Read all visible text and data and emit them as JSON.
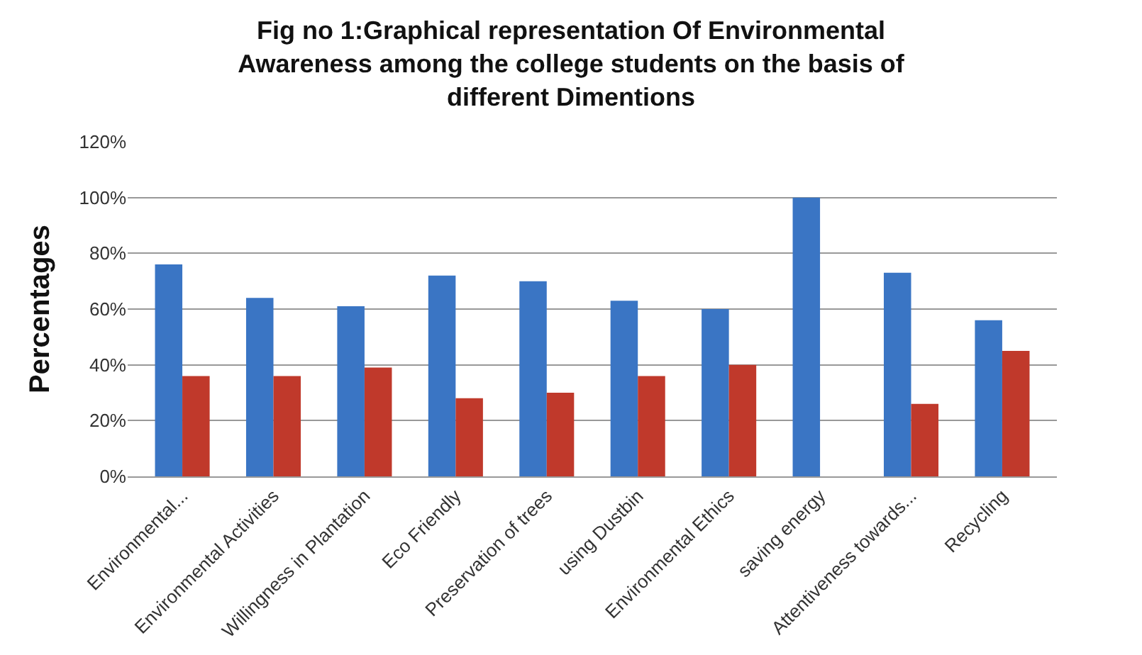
{
  "chart_data": {
    "type": "bar",
    "title": "Fig no 1:Graphical representation Of Environmental Awareness among the college students on the basis of different Dimentions",
    "ylabel": "Percentages",
    "categories": [
      "Environmental...",
      "Environmental Activities",
      "Willingness in Plantation",
      "Eco Friendly",
      "Preservation of trees",
      "using Dustbin",
      "Environmental Ethics",
      "saving energy",
      "Attentiveness towards...",
      "Recycling"
    ],
    "series": [
      {
        "color": "#3a75c4",
        "values": [
          76,
          64,
          61,
          72,
          70,
          63,
          60,
          100,
          73,
          56
        ]
      },
      {
        "color": "#c0392b",
        "values": [
          36,
          36,
          39,
          28,
          30,
          36,
          40,
          0,
          26,
          45
        ]
      }
    ],
    "ylim": [
      0,
      120
    ],
    "yticks": [
      {
        "value": 0,
        "label": "0%"
      },
      {
        "value": 20,
        "label": "20%"
      },
      {
        "value": 40,
        "label": "40%"
      },
      {
        "value": 60,
        "label": "60%"
      },
      {
        "value": 80,
        "label": "80%"
      },
      {
        "value": 100,
        "label": "100%"
      },
      {
        "value": 120,
        "label": "120%"
      }
    ],
    "grid": "y"
  }
}
